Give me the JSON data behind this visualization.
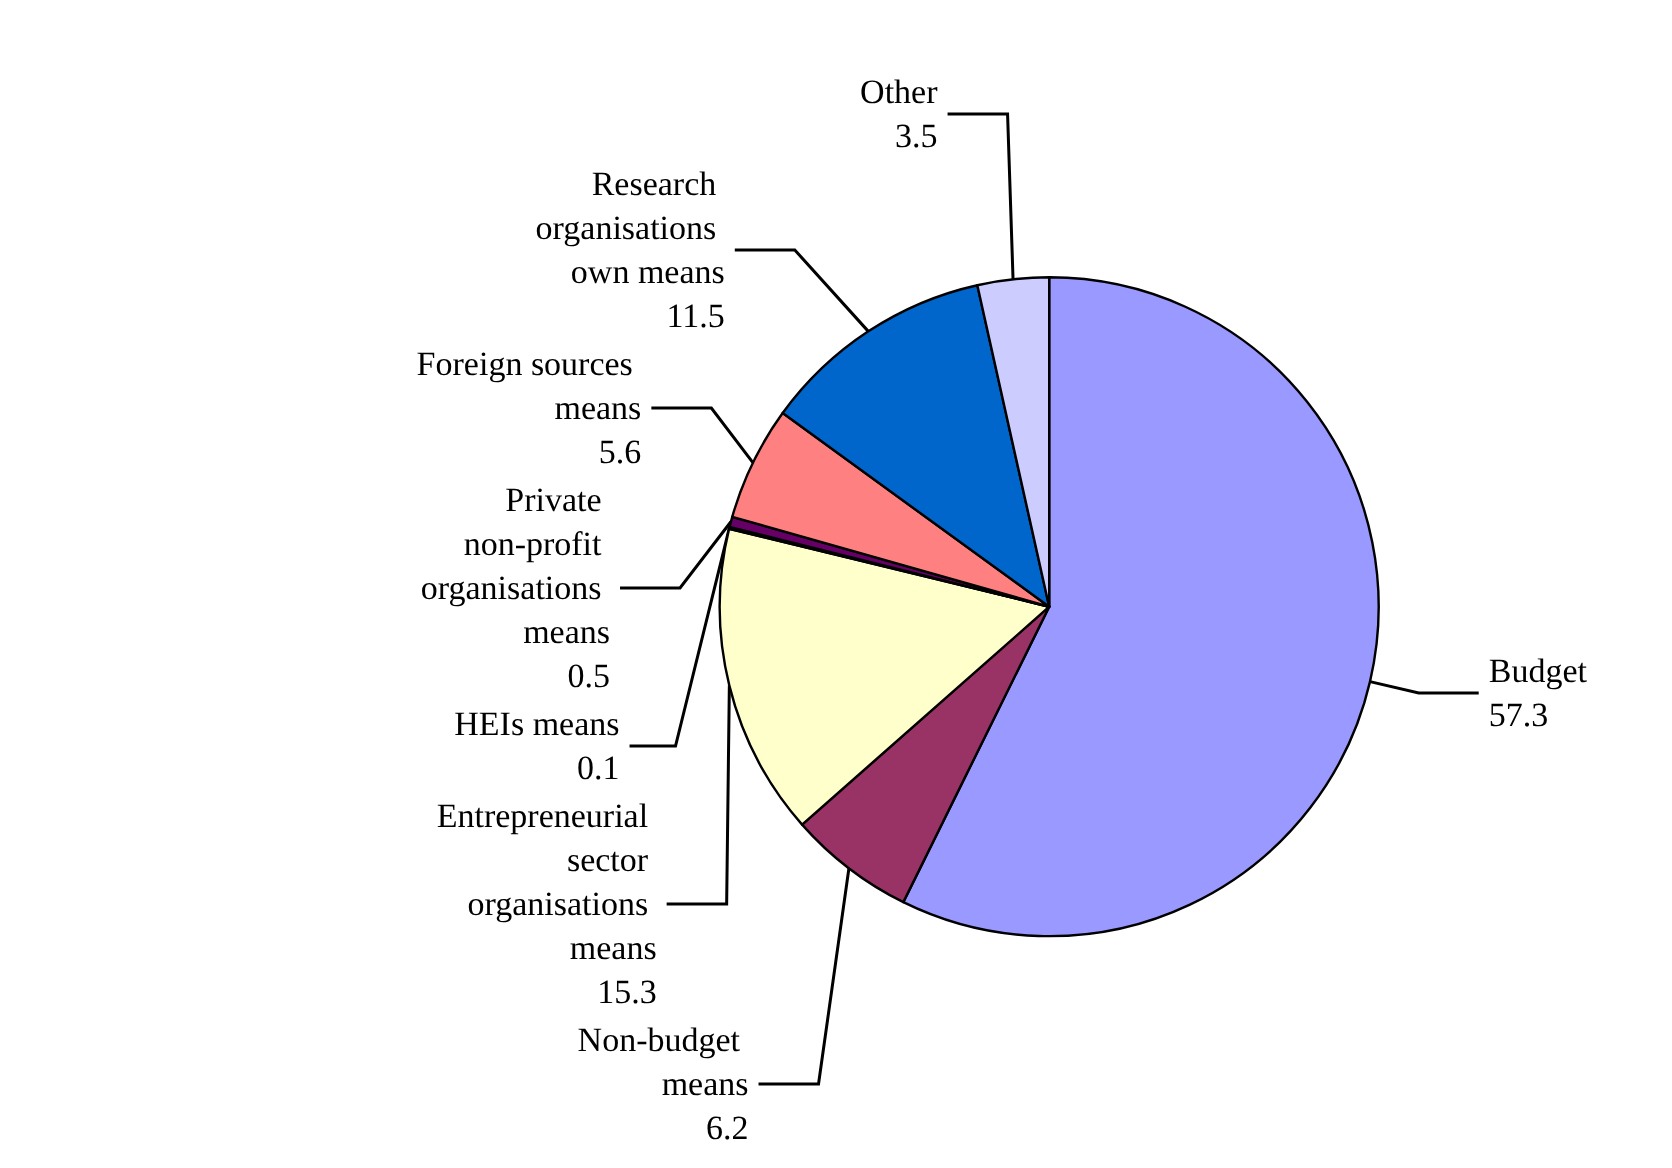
{
  "chart_data": {
    "type": "pie",
    "categories": [
      "Budget",
      "Non-budget means",
      "Entrepreneurial sector organisations means",
      "HEIs means",
      "Private non-profit organisations means",
      "Foreign sources means",
      "Research organisations own means",
      "Other"
    ],
    "values": [
      57.3,
      6.2,
      15.3,
      0.1,
      0.5,
      5.6,
      11.5,
      3.5
    ],
    "colors": [
      "#9999ff",
      "#993366",
      "#ffffcc",
      "#ccffff",
      "#660066",
      "#ff8080",
      "#0066cc",
      "#ccccff"
    ],
    "data_labels": true,
    "legend": false
  }
}
